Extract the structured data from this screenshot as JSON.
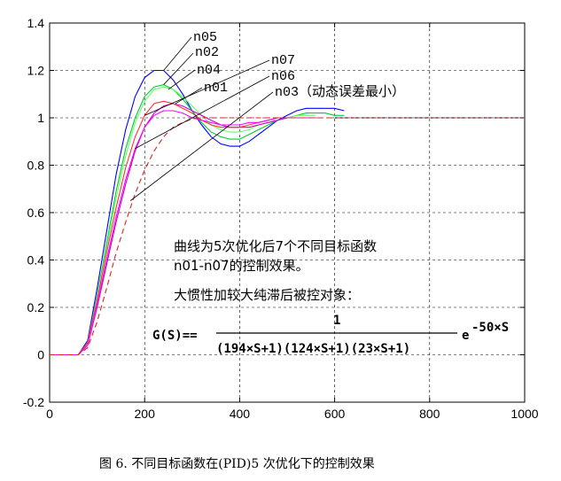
{
  "chart_data": {
    "type": "line",
    "xlim": [
      0,
      1000
    ],
    "ylim": [
      -0.2,
      1.4
    ],
    "x_ticks": [
      0,
      200,
      400,
      600,
      800,
      1000
    ],
    "y_ticks": [
      -0.2,
      0,
      0.2,
      0.4,
      0.6,
      0.8,
      1,
      1.2,
      1.4
    ],
    "x_tick_labels": [
      "0",
      "200",
      "400",
      "600",
      "800",
      "1000"
    ],
    "y_tick_labels": [
      "-0.2",
      "0",
      "0.2",
      "0.4",
      "0.6",
      "0.8",
      "1",
      "1.2",
      "1.4"
    ],
    "grid": true,
    "series": [
      {
        "name": "n05",
        "color": "#0000ff",
        "dash": "",
        "x": [
          0,
          60,
          80,
          100,
          120,
          140,
          160,
          180,
          200,
          220,
          240,
          260,
          280,
          300,
          320,
          340,
          360,
          380,
          400,
          420,
          440,
          460,
          480,
          500,
          520,
          540,
          560,
          580,
          600,
          620
        ],
        "y": [
          0,
          0,
          0.06,
          0.28,
          0.52,
          0.76,
          0.95,
          1.09,
          1.17,
          1.2,
          1.2,
          1.16,
          1.1,
          1.03,
          0.97,
          0.92,
          0.89,
          0.88,
          0.88,
          0.9,
          0.93,
          0.96,
          0.99,
          1.01,
          1.03,
          1.04,
          1.04,
          1.04,
          1.04,
          1.03
        ]
      },
      {
        "name": "n02",
        "color": "#00cc33",
        "dash": "",
        "x": [
          0,
          60,
          80,
          100,
          120,
          140,
          160,
          180,
          200,
          220,
          240,
          260,
          280,
          300,
          320,
          340,
          360,
          380,
          400,
          420,
          440,
          460,
          480,
          500,
          520,
          540,
          560,
          580,
          600,
          620
        ],
        "y": [
          0,
          0,
          0.05,
          0.25,
          0.47,
          0.69,
          0.87,
          1.0,
          1.09,
          1.13,
          1.14,
          1.12,
          1.08,
          1.03,
          0.98,
          0.94,
          0.92,
          0.91,
          0.91,
          0.93,
          0.95,
          0.97,
          0.99,
          1.0,
          1.01,
          1.02,
          1.02,
          1.02,
          1.01,
          1.01
        ]
      },
      {
        "name": "n04",
        "color": "#66ff66",
        "dash": "",
        "x": [
          0,
          60,
          80,
          100,
          120,
          140,
          160,
          180,
          200,
          220,
          240,
          260,
          280,
          300,
          320,
          340,
          360,
          380,
          400,
          420,
          440,
          460,
          480,
          500,
          520,
          540,
          560
        ],
        "y": [
          0,
          0,
          0.05,
          0.24,
          0.45,
          0.66,
          0.84,
          0.98,
          1.07,
          1.12,
          1.13,
          1.12,
          1.09,
          1.05,
          1.01,
          0.97,
          0.95,
          0.94,
          0.94,
          0.95,
          0.97,
          0.98,
          0.99,
          1.0,
          1.01,
          1.01,
          1.01
        ]
      },
      {
        "name": "n01",
        "color": "#cc00cc",
        "dash": "",
        "x": [
          0,
          60,
          80,
          100,
          120,
          140,
          160,
          180,
          200,
          220,
          240,
          260,
          280,
          300,
          320,
          340,
          360,
          380,
          400,
          420,
          440,
          460,
          480,
          500,
          520,
          540,
          560
        ],
        "y": [
          0,
          0,
          0.04,
          0.2,
          0.38,
          0.56,
          0.72,
          0.86,
          0.96,
          1.02,
          1.05,
          1.06,
          1.05,
          1.03,
          1.01,
          0.99,
          0.97,
          0.96,
          0.96,
          0.96,
          0.97,
          0.98,
          0.99,
          1.0,
          1.0,
          1.0,
          1.0
        ]
      },
      {
        "name": "n07",
        "color": "#ff3333",
        "dash": "",
        "x": [
          0,
          60,
          80,
          100,
          120,
          140,
          160,
          180,
          200,
          220,
          240,
          260,
          280,
          300,
          320,
          340,
          360,
          380,
          400,
          420,
          440,
          460,
          480,
          500,
          520,
          540,
          560
        ],
        "y": [
          0,
          0,
          0.05,
          0.23,
          0.43,
          0.62,
          0.79,
          0.92,
          1.01,
          1.06,
          1.07,
          1.06,
          1.04,
          1.02,
          0.99,
          0.97,
          0.96,
          0.96,
          0.96,
          0.97,
          0.98,
          0.99,
          1.0,
          1.0,
          1.0,
          1.0,
          1.0
        ]
      },
      {
        "name": "n06",
        "color": "#ff00ff",
        "dash": "",
        "x": [
          0,
          60,
          80,
          100,
          120,
          140,
          160,
          180,
          200,
          220,
          240,
          260,
          280,
          300,
          320,
          340,
          360,
          380,
          400,
          420,
          440,
          460,
          480,
          500,
          520,
          540,
          560
        ],
        "y": [
          0,
          0,
          0.04,
          0.21,
          0.4,
          0.58,
          0.74,
          0.87,
          0.96,
          1.01,
          1.03,
          1.03,
          1.02,
          1.0,
          0.99,
          0.98,
          0.97,
          0.97,
          0.97,
          0.98,
          0.98,
          0.99,
          1.0,
          1.0,
          1.0,
          1.0,
          1.0
        ]
      },
      {
        "name": "n03",
        "color": "#dd2222",
        "dash": "6 4",
        "x": [
          0,
          60,
          80,
          100,
          120,
          140,
          160,
          180,
          200,
          220,
          240,
          260,
          280,
          300,
          320,
          340,
          360,
          380,
          400,
          450,
          500,
          550,
          600,
          700,
          800,
          900,
          1000
        ],
        "y": [
          0,
          0,
          0.03,
          0.14,
          0.28,
          0.43,
          0.56,
          0.68,
          0.78,
          0.86,
          0.92,
          0.96,
          0.98,
          0.995,
          1.0,
          1.0,
          1.0,
          1.0,
          1.0,
          1.0,
          1.0,
          1.0,
          1.0,
          1.0,
          1.0,
          1.0,
          1.0
        ]
      },
      {
        "name": "",
        "color": "#000000",
        "dash": "3 3",
        "x": [
          600,
          700,
          800,
          900,
          1000
        ],
        "y": [
          1.0,
          1.0,
          1.0,
          1.0,
          1.0
        ]
      }
    ],
    "labels": {
      "n05": "n05",
      "n02": "n02",
      "n04": "n04",
      "n01": "n01",
      "n07": "n07",
      "n06": "n06",
      "n03": "n03（动态误差最小）"
    },
    "annotations": {
      "note_line1": "曲线为5次优化后7个不同目标函数",
      "note_line2": "n01-n07的控制效果。",
      "note_line3": "大惯性加较大纯滞后被控对象：",
      "formula_lhs": "G(S)==",
      "formula_num": "1",
      "formula_den": "(194×S+1)(124×S+1)(23×S+1)",
      "formula_exp_base": "e",
      "formula_exp": "-50×S"
    }
  },
  "caption": "图 6.  不同目标函数在(PID)5 次优化下的控制效果"
}
